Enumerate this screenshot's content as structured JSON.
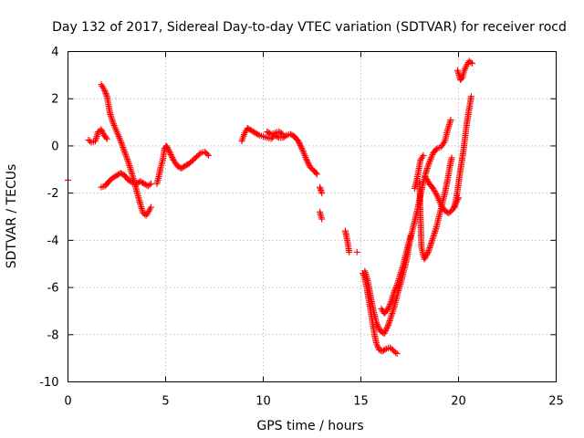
{
  "chart_data": {
    "type": "scatter",
    "title": "Day 132 of 2017, Sidereal Day-to-day VTEC variation (SDTVAR) for receiver rocd",
    "xlabel": "GPS time / hours",
    "ylabel": "SDTVAR / TECUs",
    "xlim": [
      0,
      25
    ],
    "ylim": [
      -10,
      4
    ],
    "xticks": [
      0,
      5,
      10,
      15,
      20,
      25
    ],
    "yticks": [
      -10,
      -8,
      -6,
      -4,
      -2,
      0,
      2,
      4
    ],
    "grid": true,
    "legend": "none",
    "marker": "plus",
    "color": "#ff0000",
    "series": [
      {
        "segments": [
          [
            [
              0.0,
              -1.45
            ]
          ],
          [
            [
              1.05,
              0.25
            ],
            [
              1.2,
              0.15
            ],
            [
              1.4,
              0.2
            ],
            [
              1.55,
              0.6
            ],
            [
              1.7,
              0.7
            ],
            [
              1.85,
              0.45
            ],
            [
              2.0,
              0.3
            ]
          ],
          [
            [
              1.7,
              -1.75
            ],
            [
              1.9,
              -1.7
            ],
            [
              2.1,
              -1.5
            ],
            [
              2.3,
              -1.35
            ],
            [
              2.5,
              -1.25
            ],
            [
              2.7,
              -1.15
            ],
            [
              2.9,
              -1.25
            ],
            [
              3.1,
              -1.45
            ],
            [
              3.3,
              -1.55
            ],
            [
              3.5,
              -1.6
            ],
            [
              3.7,
              -1.5
            ],
            [
              3.9,
              -1.6
            ],
            [
              4.1,
              -1.7
            ],
            [
              4.25,
              -1.6
            ]
          ],
          [
            [
              1.7,
              2.6
            ],
            [
              1.85,
              2.4
            ],
            [
              2.0,
              2.1
            ],
            [
              2.15,
              1.4
            ],
            [
              2.3,
              1.0
            ],
            [
              2.5,
              0.6
            ],
            [
              2.7,
              0.2
            ],
            [
              2.9,
              -0.25
            ],
            [
              3.1,
              -0.7
            ],
            [
              3.3,
              -1.25
            ],
            [
              3.5,
              -1.85
            ],
            [
              3.7,
              -2.45
            ],
            [
              3.85,
              -2.85
            ],
            [
              4.0,
              -2.95
            ],
            [
              4.15,
              -2.75
            ],
            [
              4.25,
              -2.6
            ]
          ],
          [
            [
              4.55,
              -1.6
            ],
            [
              4.65,
              -1.3
            ],
            [
              4.75,
              -0.9
            ],
            [
              4.85,
              -0.6
            ],
            [
              4.95,
              -0.1
            ],
            [
              5.05,
              0.0
            ],
            [
              5.2,
              -0.25
            ],
            [
              5.4,
              -0.6
            ],
            [
              5.6,
              -0.85
            ],
            [
              5.8,
              -0.95
            ],
            [
              6.0,
              -0.85
            ],
            [
              6.2,
              -0.75
            ],
            [
              6.4,
              -0.6
            ],
            [
              6.6,
              -0.45
            ],
            [
              6.8,
              -0.3
            ],
            [
              7.0,
              -0.25
            ],
            [
              7.2,
              -0.4
            ]
          ],
          [
            [
              8.9,
              0.2
            ],
            [
              9.05,
              0.55
            ],
            [
              9.2,
              0.75
            ],
            [
              9.4,
              0.65
            ],
            [
              9.6,
              0.55
            ],
            [
              9.8,
              0.45
            ],
            [
              10.0,
              0.4
            ],
            [
              10.2,
              0.35
            ],
            [
              10.4,
              0.3
            ],
            [
              10.6,
              0.45
            ],
            [
              10.8,
              0.35
            ],
            [
              11.0,
              0.35
            ],
            [
              11.2,
              0.45
            ],
            [
              11.4,
              0.5
            ],
            [
              11.6,
              0.4
            ],
            [
              11.8,
              0.2
            ],
            [
              12.0,
              -0.15
            ],
            [
              12.2,
              -0.55
            ],
            [
              12.4,
              -0.9
            ],
            [
              12.6,
              -1.05
            ],
            [
              12.75,
              -1.2
            ]
          ],
          [
            [
              10.2,
              0.6
            ],
            [
              10.4,
              0.5
            ],
            [
              10.6,
              0.55
            ],
            [
              10.8,
              0.6
            ],
            [
              11.0,
              0.5
            ]
          ],
          [
            [
              12.9,
              -1.75
            ],
            [
              13.0,
              -2.0
            ]
          ],
          [
            [
              12.9,
              -2.8
            ],
            [
              13.0,
              -3.1
            ]
          ],
          [
            [
              14.2,
              -3.6
            ],
            [
              14.3,
              -4.0
            ],
            [
              14.4,
              -4.5
            ]
          ],
          [
            [
              14.8,
              -4.5
            ]
          ],
          [
            [
              15.1,
              -5.4
            ],
            [
              15.2,
              -5.6
            ],
            [
              15.3,
              -6.0
            ],
            [
              15.4,
              -6.5
            ],
            [
              15.5,
              -7.0
            ],
            [
              15.6,
              -7.5
            ],
            [
              15.7,
              -8.0
            ],
            [
              15.8,
              -8.4
            ],
            [
              15.95,
              -8.65
            ],
            [
              16.1,
              -8.7
            ],
            [
              16.3,
              -8.6
            ],
            [
              16.5,
              -8.55
            ],
            [
              16.7,
              -8.7
            ],
            [
              16.85,
              -8.8
            ]
          ],
          [
            [
              15.2,
              -5.3
            ],
            [
              15.35,
              -5.7
            ],
            [
              15.5,
              -6.4
            ],
            [
              15.65,
              -7.0
            ],
            [
              15.8,
              -7.5
            ],
            [
              16.0,
              -7.85
            ],
            [
              16.2,
              -7.95
            ],
            [
              16.4,
              -7.6
            ],
            [
              16.6,
              -7.1
            ],
            [
              16.75,
              -6.7
            ],
            [
              16.9,
              -6.2
            ],
            [
              17.05,
              -5.8
            ],
            [
              17.2,
              -5.3
            ],
            [
              17.35,
              -4.8
            ],
            [
              17.45,
              -4.3
            ],
            [
              17.6,
              -3.7
            ],
            [
              17.75,
              -3.2
            ],
            [
              17.9,
              -2.7
            ],
            [
              18.0,
              -2.3
            ],
            [
              18.15,
              -1.7
            ],
            [
              18.3,
              -1.2
            ],
            [
              18.5,
              -0.7
            ],
            [
              18.7,
              -0.3
            ],
            [
              18.9,
              -0.1
            ],
            [
              19.1,
              -0.05
            ],
            [
              19.3,
              0.2
            ],
            [
              19.45,
              0.7
            ],
            [
              19.6,
              1.1
            ]
          ],
          [
            [
              16.05,
              -6.9
            ],
            [
              16.2,
              -7.1
            ],
            [
              16.4,
              -6.9
            ],
            [
              16.55,
              -6.6
            ],
            [
              16.7,
              -6.2
            ],
            [
              16.85,
              -5.9
            ],
            [
              17.0,
              -5.5
            ],
            [
              17.15,
              -5.1
            ],
            [
              17.3,
              -4.6
            ],
            [
              17.45,
              -4.1
            ],
            [
              17.55,
              -3.8
            ]
          ],
          [
            [
              17.75,
              -1.8
            ],
            [
              17.9,
              -1.3
            ],
            [
              18.05,
              -0.6
            ],
            [
              18.2,
              -0.4
            ]
          ],
          [
            [
              18.0,
              -1.5
            ],
            [
              18.1,
              -4.3
            ],
            [
              18.25,
              -4.8
            ],
            [
              18.45,
              -4.5
            ],
            [
              18.65,
              -4.0
            ],
            [
              18.85,
              -3.5
            ],
            [
              19.0,
              -3.0
            ],
            [
              19.15,
              -2.5
            ],
            [
              19.3,
              -2.0
            ],
            [
              19.45,
              -1.4
            ],
            [
              19.55,
              -0.9
            ],
            [
              19.65,
              -0.5
            ]
          ],
          [
            [
              18.3,
              -1.3
            ],
            [
              18.5,
              -1.6
            ],
            [
              18.7,
              -1.8
            ],
            [
              18.9,
              -2.1
            ],
            [
              19.1,
              -2.5
            ],
            [
              19.3,
              -2.75
            ],
            [
              19.5,
              -2.85
            ],
            [
              19.7,
              -2.7
            ],
            [
              19.85,
              -2.45
            ],
            [
              20.0,
              -2.2
            ]
          ],
          [
            [
              19.8,
              -2.6
            ],
            [
              19.95,
              -1.9
            ],
            [
              20.1,
              -1.0
            ],
            [
              20.25,
              -0.2
            ],
            [
              20.4,
              0.8
            ],
            [
              20.55,
              1.6
            ],
            [
              20.65,
              2.1
            ]
          ],
          [
            [
              19.95,
              3.2
            ],
            [
              20.1,
              2.8
            ],
            [
              20.2,
              2.9
            ],
            [
              20.3,
              3.2
            ],
            [
              20.4,
              3.4
            ],
            [
              20.55,
              3.6
            ],
            [
              20.7,
              3.5
            ]
          ]
        ]
      }
    ]
  }
}
